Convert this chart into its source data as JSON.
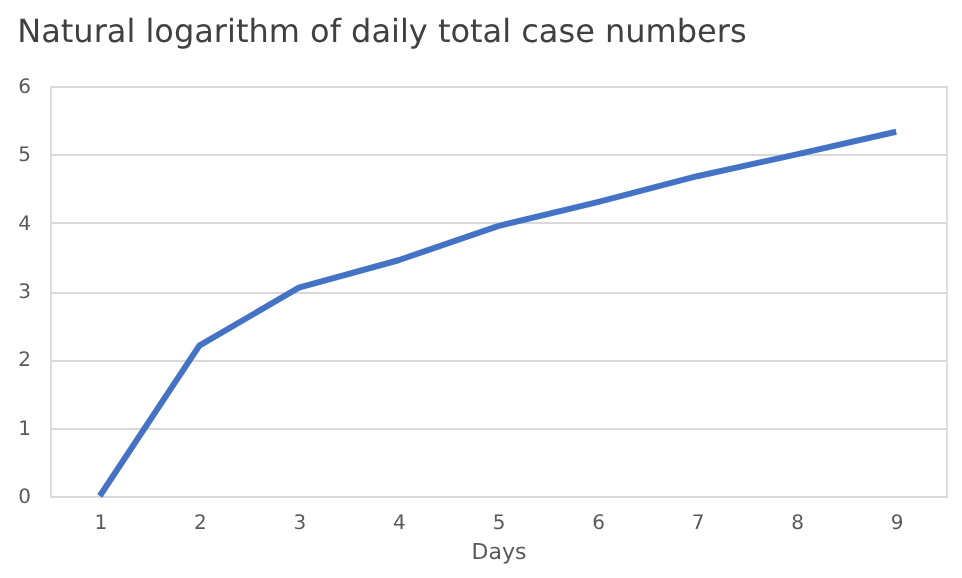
{
  "chart_data": {
    "type": "line",
    "title": "Natural logarithm of daily total case numbers",
    "xlabel": "Days",
    "categories": [
      "1",
      "2",
      "3",
      "4",
      "5",
      "6",
      "7",
      "8",
      "9"
    ],
    "series": [
      {
        "color": "#4472c4",
        "values": [
          0,
          2.2,
          3.05,
          3.45,
          3.95,
          4.3,
          4.68,
          5.0,
          5.33
        ]
      }
    ],
    "ylim": [
      0,
      6
    ],
    "yticks": [
      0,
      1,
      2,
      3,
      4,
      5,
      6
    ],
    "grid": "y",
    "marker": "none",
    "line_style": "solid"
  }
}
